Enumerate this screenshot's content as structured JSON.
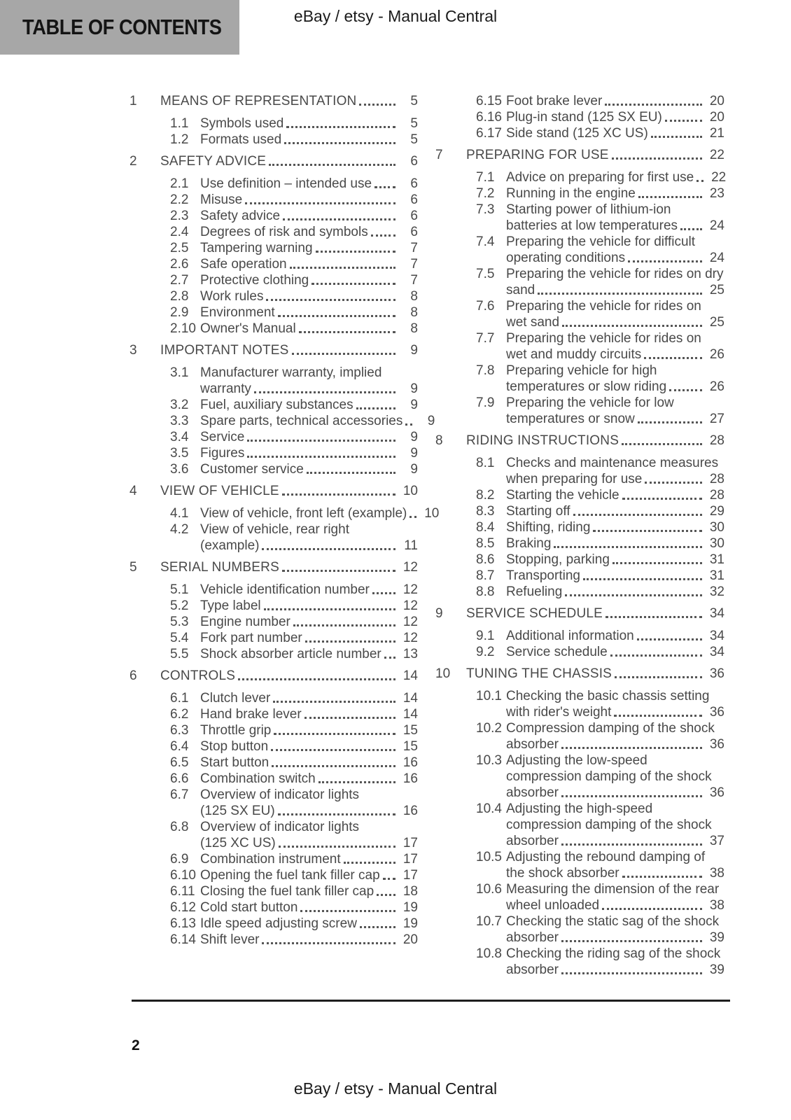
{
  "header": {
    "doc_title": "TABLE OF CONTENTS",
    "site_title": "eBay / etsy - Manual Central"
  },
  "footer": {
    "page_number": "2",
    "site_title": "eBay / etsy - Manual Central"
  },
  "colors": {
    "header_box_bg": "#a7a7a7",
    "heading_text": "#141414",
    "body_text": "#494949",
    "footer_rule": "#1e1e1e"
  },
  "toc": {
    "columns": [
      {
        "sections": [
          {
            "num": "1",
            "title": "MEANS OF REPRESENTATION",
            "page": "5",
            "items": [
              {
                "num": "1.1",
                "lines": [
                  "Symbols used"
                ],
                "page": "5"
              },
              {
                "num": "1.2",
                "lines": [
                  "Formats used"
                ],
                "page": "5"
              }
            ]
          },
          {
            "num": "2",
            "title": "SAFETY ADVICE",
            "page": "6",
            "items": [
              {
                "num": "2.1",
                "lines": [
                  "Use definition – intended use"
                ],
                "page": "6"
              },
              {
                "num": "2.2",
                "lines": [
                  "Misuse"
                ],
                "page": "6"
              },
              {
                "num": "2.3",
                "lines": [
                  "Safety advice"
                ],
                "page": "6"
              },
              {
                "num": "2.4",
                "lines": [
                  "Degrees of risk and symbols"
                ],
                "page": "6"
              },
              {
                "num": "2.5",
                "lines": [
                  "Tampering warning"
                ],
                "page": "7"
              },
              {
                "num": "2.6",
                "lines": [
                  "Safe operation"
                ],
                "page": "7"
              },
              {
                "num": "2.7",
                "lines": [
                  "Protective clothing"
                ],
                "page": "7"
              },
              {
                "num": "2.8",
                "lines": [
                  "Work rules"
                ],
                "page": "8"
              },
              {
                "num": "2.9",
                "lines": [
                  "Environment"
                ],
                "page": "8"
              },
              {
                "num": "2.10",
                "lines": [
                  "Owner's Manual"
                ],
                "page": "8"
              }
            ]
          },
          {
            "num": "3",
            "title": "IMPORTANT NOTES",
            "page": "9",
            "items": [
              {
                "num": "3.1",
                "lines": [
                  "Manufacturer warranty, implied",
                  "warranty"
                ],
                "page": "9"
              },
              {
                "num": "3.2",
                "lines": [
                  "Fuel, auxiliary substances"
                ],
                "page": "9"
              },
              {
                "num": "3.3",
                "lines": [
                  "Spare parts, technical accessories"
                ],
                "page": "9"
              },
              {
                "num": "3.4",
                "lines": [
                  "Service"
                ],
                "page": "9"
              },
              {
                "num": "3.5",
                "lines": [
                  "Figures"
                ],
                "page": "9"
              },
              {
                "num": "3.6",
                "lines": [
                  "Customer service"
                ],
                "page": "9"
              }
            ]
          },
          {
            "num": "4",
            "title": "VIEW OF VEHICLE",
            "page": "10",
            "items": [
              {
                "num": "4.1",
                "lines": [
                  "View of vehicle, front left (example)"
                ],
                "page": "10"
              },
              {
                "num": "4.2",
                "lines": [
                  "View of vehicle, rear right",
                  "(example)"
                ],
                "page": "11"
              }
            ]
          },
          {
            "num": "5",
            "title": "SERIAL NUMBERS",
            "page": "12",
            "items": [
              {
                "num": "5.1",
                "lines": [
                  "Vehicle identification number"
                ],
                "page": "12"
              },
              {
                "num": "5.2",
                "lines": [
                  "Type label"
                ],
                "page": "12"
              },
              {
                "num": "5.3",
                "lines": [
                  "Engine number"
                ],
                "page": "12"
              },
              {
                "num": "5.4",
                "lines": [
                  "Fork part number"
                ],
                "page": "12"
              },
              {
                "num": "5.5",
                "lines": [
                  "Shock absorber article number"
                ],
                "page": "13"
              }
            ]
          },
          {
            "num": "6",
            "title": "CONTROLS",
            "page": "14",
            "items": [
              {
                "num": "6.1",
                "lines": [
                  "Clutch lever"
                ],
                "page": "14"
              },
              {
                "num": "6.2",
                "lines": [
                  "Hand brake lever"
                ],
                "page": "14"
              },
              {
                "num": "6.3",
                "lines": [
                  "Throttle grip"
                ],
                "page": "15"
              },
              {
                "num": "6.4",
                "lines": [
                  "Stop button"
                ],
                "page": "15"
              },
              {
                "num": "6.5",
                "lines": [
                  "Start button"
                ],
                "page": "16"
              },
              {
                "num": "6.6",
                "lines": [
                  "Combination switch"
                ],
                "page": "16"
              },
              {
                "num": "6.7",
                "lines": [
                  "Overview of indicator lights",
                  "(125 SX EU)"
                ],
                "page": "16"
              },
              {
                "num": "6.8",
                "lines": [
                  "Overview of indicator lights",
                  "(125 XC US)"
                ],
                "page": "17"
              },
              {
                "num": "6.9",
                "lines": [
                  "Combination instrument"
                ],
                "page": "17"
              },
              {
                "num": "6.10",
                "lines": [
                  "Opening the fuel tank filler cap"
                ],
                "page": "17"
              },
              {
                "num": "6.11",
                "lines": [
                  "Closing the fuel tank filler cap"
                ],
                "page": "18"
              },
              {
                "num": "6.12",
                "lines": [
                  "Cold start button"
                ],
                "page": "19"
              },
              {
                "num": "6.13",
                "lines": [
                  "Idle speed adjusting screw"
                ],
                "page": "19"
              },
              {
                "num": "6.14",
                "lines": [
                  "Shift lever"
                ],
                "page": "20"
              }
            ]
          }
        ]
      },
      {
        "sections": [
          {
            "num": null,
            "title": null,
            "page": null,
            "items": [
              {
                "num": "6.15",
                "lines": [
                  "Foot brake lever"
                ],
                "page": "20"
              },
              {
                "num": "6.16",
                "lines": [
                  "Plug-in stand (125 SX EU)"
                ],
                "page": "20"
              },
              {
                "num": "6.17",
                "lines": [
                  "Side stand (125 XC US)"
                ],
                "page": "21"
              }
            ]
          },
          {
            "num": "7",
            "title": "PREPARING FOR USE",
            "page": "22",
            "items": [
              {
                "num": "7.1",
                "lines": [
                  "Advice on preparing for first use"
                ],
                "page": "22"
              },
              {
                "num": "7.2",
                "lines": [
                  "Running in the engine"
                ],
                "page": "23"
              },
              {
                "num": "7.3",
                "lines": [
                  "Starting power of lithium-ion",
                  "batteries at low temperatures"
                ],
                "page": "24"
              },
              {
                "num": "7.4",
                "lines": [
                  "Preparing the vehicle for difficult",
                  "operating conditions"
                ],
                "page": "24"
              },
              {
                "num": "7.5",
                "lines": [
                  "Preparing the vehicle for rides on dry",
                  "sand"
                ],
                "page": "25"
              },
              {
                "num": "7.6",
                "lines": [
                  "Preparing the vehicle for rides on",
                  "wet sand"
                ],
                "page": "25"
              },
              {
                "num": "7.7",
                "lines": [
                  "Preparing the vehicle for rides on",
                  "wet and muddy circuits"
                ],
                "page": "26"
              },
              {
                "num": "7.8",
                "lines": [
                  "Preparing vehicle for high",
                  "temperatures or slow riding"
                ],
                "page": "26"
              },
              {
                "num": "7.9",
                "lines": [
                  "Preparing the vehicle for low",
                  "temperatures or snow"
                ],
                "page": "27"
              }
            ]
          },
          {
            "num": "8",
            "title": "RIDING INSTRUCTIONS",
            "page": "28",
            "items": [
              {
                "num": "8.1",
                "lines": [
                  "Checks and maintenance measures",
                  "when preparing for use"
                ],
                "page": "28"
              },
              {
                "num": "8.2",
                "lines": [
                  "Starting the vehicle"
                ],
                "page": "28"
              },
              {
                "num": "8.3",
                "lines": [
                  "Starting off"
                ],
                "page": "29"
              },
              {
                "num": "8.4",
                "lines": [
                  "Shifting, riding"
                ],
                "page": "30"
              },
              {
                "num": "8.5",
                "lines": [
                  "Braking"
                ],
                "page": "30"
              },
              {
                "num": "8.6",
                "lines": [
                  "Stopping, parking"
                ],
                "page": "31"
              },
              {
                "num": "8.7",
                "lines": [
                  "Transporting"
                ],
                "page": "31"
              },
              {
                "num": "8.8",
                "lines": [
                  "Refueling"
                ],
                "page": "32"
              }
            ]
          },
          {
            "num": "9",
            "title": "SERVICE SCHEDULE",
            "page": "34",
            "items": [
              {
                "num": "9.1",
                "lines": [
                  "Additional information"
                ],
                "page": "34"
              },
              {
                "num": "9.2",
                "lines": [
                  "Service schedule"
                ],
                "page": "34"
              }
            ]
          },
          {
            "num": "10",
            "title": "TUNING THE CHASSIS",
            "page": "36",
            "items": [
              {
                "num": "10.1",
                "lines": [
                  "Checking the basic chassis setting",
                  "with rider's weight"
                ],
                "page": "36"
              },
              {
                "num": "10.2",
                "lines": [
                  "Compression damping of the shock",
                  "absorber"
                ],
                "page": "36"
              },
              {
                "num": "10.3",
                "lines": [
                  "Adjusting the low-speed",
                  "compression damping of the shock",
                  "absorber"
                ],
                "page": "36"
              },
              {
                "num": "10.4",
                "lines": [
                  "Adjusting the high-speed",
                  "compression damping of the shock",
                  "absorber"
                ],
                "page": "37"
              },
              {
                "num": "10.5",
                "lines": [
                  "Adjusting the rebound damping of",
                  "the shock absorber"
                ],
                "page": "38"
              },
              {
                "num": "10.6",
                "lines": [
                  "Measuring the dimension of the rear",
                  "wheel unloaded"
                ],
                "page": "38"
              },
              {
                "num": "10.7",
                "lines": [
                  "Checking the static sag of the shock",
                  "absorber"
                ],
                "page": "39"
              },
              {
                "num": "10.8",
                "lines": [
                  "Checking the riding sag of the shock",
                  "absorber"
                ],
                "page": "39"
              }
            ]
          }
        ]
      }
    ]
  }
}
